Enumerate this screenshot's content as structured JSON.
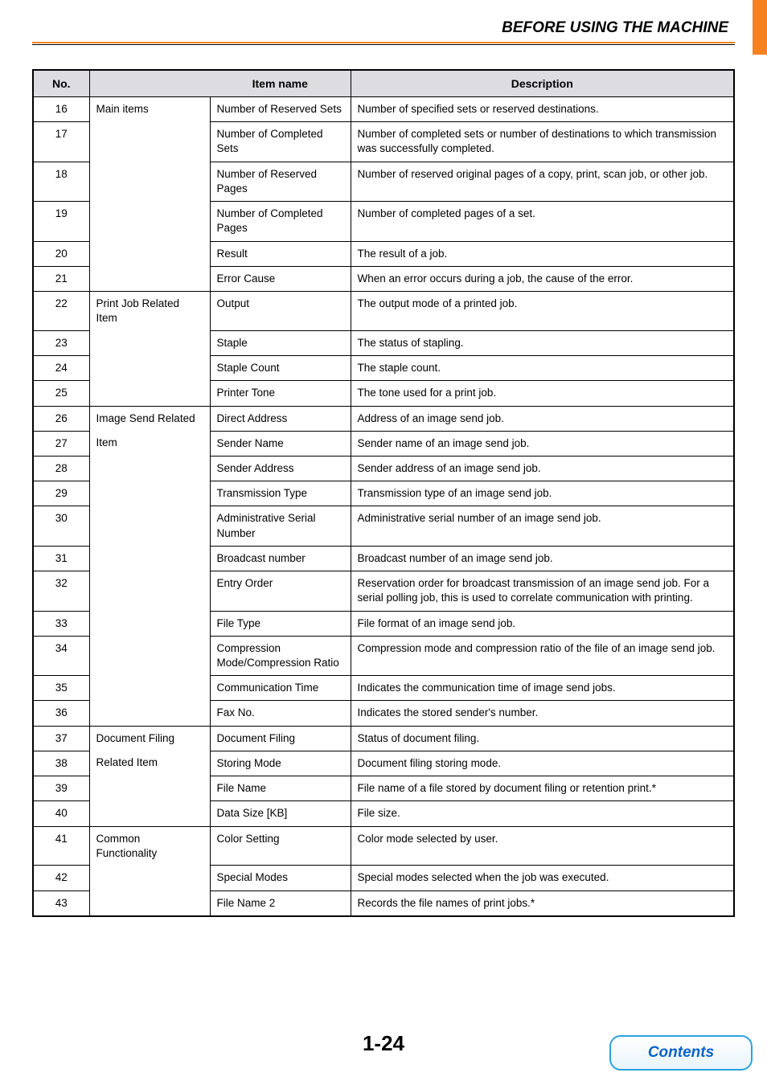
{
  "header": {
    "title": "BEFORE USING THE MACHINE",
    "accent_color": "#f58220",
    "rule_color": "#000000"
  },
  "table": {
    "header_bg": "#dddce1",
    "border_color": "#000000",
    "columns": {
      "no": "No.",
      "category": "",
      "item": "Item name",
      "description": "Description"
    },
    "rows": [
      {
        "no": "16",
        "category": "Main items",
        "cat_edges": "no-bottom",
        "item": "Number of Reserved Sets",
        "desc": "Number of specified sets or reserved destinations."
      },
      {
        "no": "17",
        "category": "",
        "cat_edges": "no-top no-bottom",
        "item": "Number of Completed Sets",
        "desc": "Number of completed sets or number of destinations to which transmission was successfully completed."
      },
      {
        "no": "18",
        "category": "",
        "cat_edges": "no-top no-bottom",
        "item": "Number of Reserved Pages",
        "desc": "Number of reserved original pages of a copy, print, scan job, or other job."
      },
      {
        "no": "19",
        "category": "",
        "cat_edges": "no-top no-bottom",
        "item": "Number of Completed Pages",
        "desc": "Number of completed pages of a set."
      },
      {
        "no": "20",
        "category": "",
        "cat_edges": "no-top no-bottom",
        "item": "Result",
        "desc": "The result of a job."
      },
      {
        "no": "21",
        "category": "",
        "cat_edges": "no-top",
        "item": "Error Cause",
        "desc": "When an error occurs during a job, the cause of the error."
      },
      {
        "no": "22",
        "category": "Print Job Related Item",
        "cat_edges": "no-bottom",
        "item": "Output",
        "desc": "The output mode of a printed job."
      },
      {
        "no": "23",
        "category": "",
        "cat_edges": "no-top no-bottom",
        "item": "Staple",
        "desc": "The status of stapling."
      },
      {
        "no": "24",
        "category": "",
        "cat_edges": "no-top no-bottom",
        "item": "Staple Count",
        "desc": "The staple count."
      },
      {
        "no": "25",
        "category": "",
        "cat_edges": "no-top",
        "item": "Printer Tone",
        "desc": "The tone used for a print job."
      },
      {
        "no": "26",
        "category": "Image Send Related",
        "cat_edges": "no-bottom",
        "item": "Direct Address",
        "desc": "Address of an image send job."
      },
      {
        "no": "27",
        "category": "Item",
        "cat_edges": "no-top no-bottom",
        "item": "Sender Name",
        "desc": "Sender name of an image send job."
      },
      {
        "no": "28",
        "category": "",
        "cat_edges": "no-top no-bottom",
        "item": "Sender Address",
        "desc": "Sender address of an image send job."
      },
      {
        "no": "29",
        "category": "",
        "cat_edges": "no-top no-bottom",
        "item": "Transmission Type",
        "desc": "Transmission type of an image send job."
      },
      {
        "no": "30",
        "category": "",
        "cat_edges": "no-top no-bottom",
        "item": "Administrative Serial Number",
        "desc": "Administrative serial number of an image send job."
      },
      {
        "no": "31",
        "category": "",
        "cat_edges": "no-top no-bottom",
        "item": "Broadcast number",
        "desc": "Broadcast number of an image send job."
      },
      {
        "no": "32",
        "category": "",
        "cat_edges": "no-top no-bottom",
        "item": "Entry Order",
        "desc": "Reservation order for broadcast transmission of an image send job. For a serial polling job, this is used to correlate communication with printing."
      },
      {
        "no": "33",
        "category": "",
        "cat_edges": "no-top no-bottom",
        "item": "File Type",
        "desc": "File format of an image send job."
      },
      {
        "no": "34",
        "category": "",
        "cat_edges": "no-top no-bottom",
        "item": "Compression Mode/Compression Ratio",
        "desc": "Compression mode and compression ratio of the file of an image send job."
      },
      {
        "no": "35",
        "category": "",
        "cat_edges": "no-top no-bottom",
        "item": "Communication Time",
        "desc": "Indicates the communication time of image send jobs."
      },
      {
        "no": "36",
        "category": "",
        "cat_edges": "no-top",
        "item": "Fax No.",
        "desc": "Indicates the stored sender's number."
      },
      {
        "no": "37",
        "category": "Document Filing",
        "cat_edges": "no-bottom",
        "item": "Document Filing",
        "desc": "Status of document filing."
      },
      {
        "no": "38",
        "category": "Related Item",
        "cat_edges": "no-top no-bottom",
        "item": "Storing Mode",
        "desc": "Document filing storing mode."
      },
      {
        "no": "39",
        "category": "",
        "cat_edges": "no-top no-bottom",
        "item": "File Name",
        "desc": "File name of a file stored by document filing or retention print.*"
      },
      {
        "no": "40",
        "category": "",
        "cat_edges": "no-top",
        "item": "Data Size [KB]",
        "desc": "File size."
      },
      {
        "no": "41",
        "category": "Common Functionality",
        "cat_edges": "no-bottom",
        "item": "Color Setting",
        "desc": "Color mode selected by user."
      },
      {
        "no": "42",
        "category": "",
        "cat_edges": "no-top no-bottom",
        "item": "Special Modes",
        "desc": "Special modes selected when the job was executed."
      },
      {
        "no": "43",
        "category": "",
        "cat_edges": "no-top",
        "item": "File Name 2",
        "desc": "Records the file names of print jobs.*"
      }
    ]
  },
  "footer": {
    "page_number": "1-24",
    "contents_label": "Contents",
    "contents_border": "#2aa3e0",
    "contents_text_color": "#0a63c8"
  }
}
